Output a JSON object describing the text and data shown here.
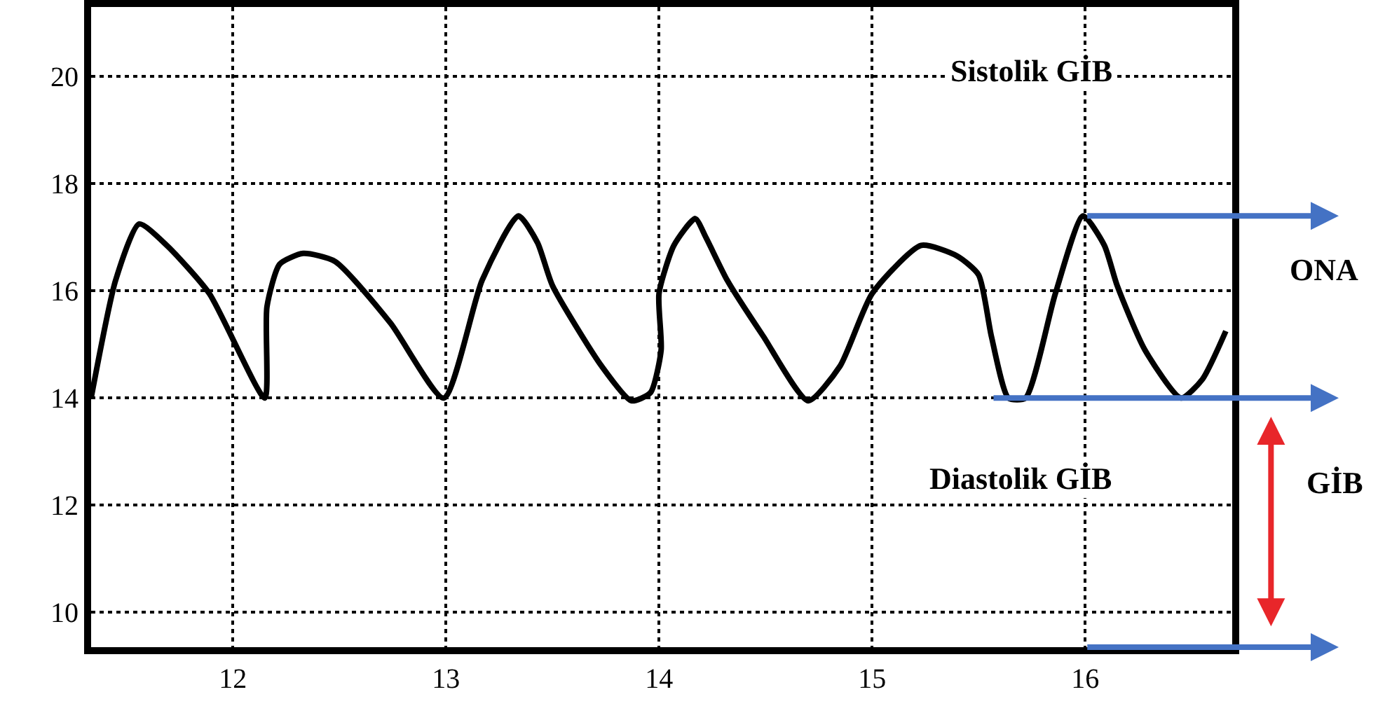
{
  "chart_data": {
    "type": "line",
    "x": [
      11.335,
      11.45,
      11.56,
      11.69,
      11.89,
      12.15,
      12.16,
      12.22,
      12.33,
      12.48,
      12.74,
      12.99,
      13.17,
      13.34,
      13.43,
      13.5,
      13.73,
      13.87,
      13.96,
      14.01,
      14.0,
      14.07,
      14.17,
      14.22,
      14.32,
      14.49,
      14.7,
      14.85,
      15.0,
      15.23,
      15.4,
      15.5,
      15.56,
      15.64,
      15.72,
      15.86,
      15.99,
      16.09,
      16.15,
      16.28,
      16.45,
      16.55,
      16.66
    ],
    "series": [
      {
        "color": "#000000",
        "values": [
          14.0,
          16.2,
          17.25,
          16.85,
          15.95,
          14.0,
          15.7,
          16.5,
          16.7,
          16.55,
          15.4,
          14.0,
          16.2,
          17.4,
          16.9,
          16.1,
          14.6,
          13.95,
          14.1,
          14.9,
          15.95,
          16.85,
          17.35,
          17.0,
          16.2,
          15.15,
          13.95,
          14.6,
          15.95,
          16.85,
          16.65,
          16.3,
          15.15,
          14.0,
          14.0,
          15.95,
          17.4,
          16.85,
          16.1,
          14.9,
          14.0,
          14.35,
          15.25
        ]
      }
    ],
    "xlim": [
      11.335,
      16.69
    ],
    "ylim": [
      9.35,
      21.3
    ],
    "xticks": [
      12,
      13,
      14,
      15,
      16
    ],
    "yticks": [
      10,
      12,
      14,
      16,
      18,
      20
    ],
    "grid": true,
    "line_style": "solid",
    "marker": "none",
    "ref_lines": [
      {
        "axis": "y",
        "value": 17.4,
        "label": null,
        "color": "#4472c4"
      },
      {
        "axis": "y",
        "value": 14,
        "label": null,
        "color": "#4472c4"
      },
      {
        "axis": "y",
        "value": 9.35,
        "label": null,
        "color": "#4472c4"
      }
    ],
    "annotations": [
      "Sistolik GİB",
      "Diastolik GİB",
      "ONA",
      "GİB"
    ]
  }
}
